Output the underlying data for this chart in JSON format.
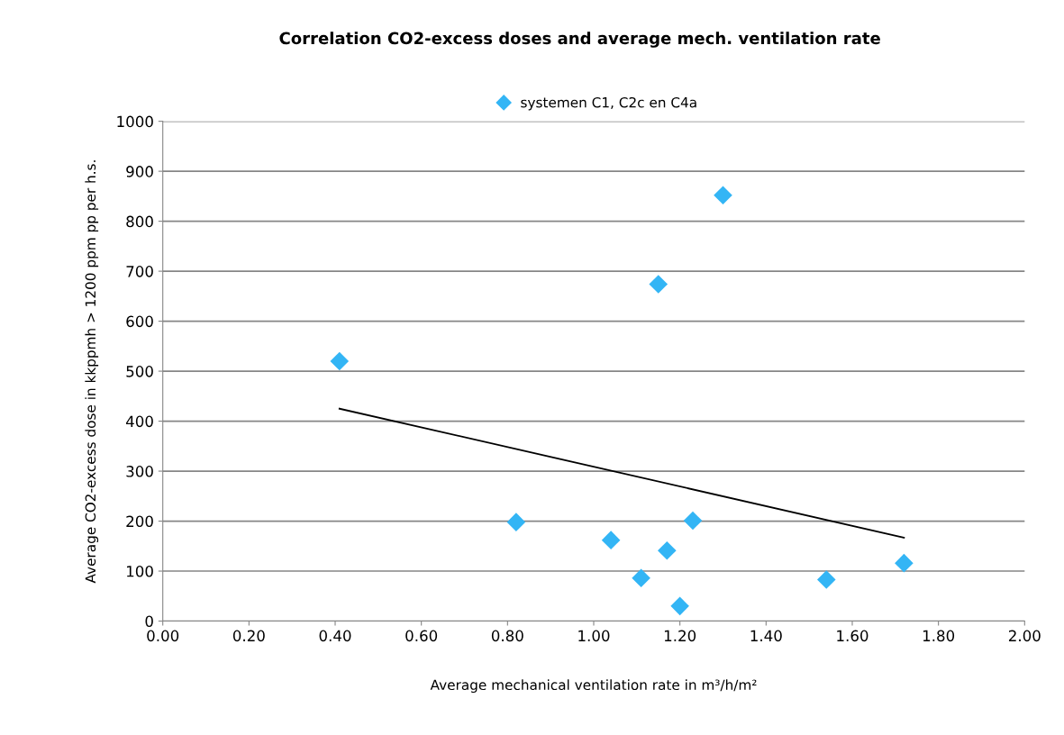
{
  "chart_data": {
    "type": "scatter",
    "title": "Correlation CO2-excess doses and average mech. ventilation rate",
    "xlabel": "Average mechanical ventilation rate in m³/h/m²",
    "ylabel": "Average CO2-excess dose in kkppmh > 1200 ppm pp per h.s.",
    "series": [
      {
        "name": "systemen C1, C2c en C4a",
        "color": "#33b5f5",
        "marker": "diamond",
        "x": [
          0.41,
          0.82,
          1.04,
          1.11,
          1.15,
          1.17,
          1.2,
          1.23,
          1.3,
          1.54,
          1.72
        ],
        "values": [
          520,
          198,
          162,
          86,
          674,
          141,
          30,
          201,
          852,
          83,
          116
        ]
      },
      {
        "type": "line",
        "color": "#000000",
        "marker": "none",
        "x": [
          0.41,
          1.72
        ],
        "values": [
          425,
          167
        ]
      }
    ],
    "xlim": [
      0,
      2
    ],
    "xticks": [
      {
        "value": 0,
        "label": "0.00"
      },
      {
        "value": 0.2,
        "label": "0.20"
      },
      {
        "value": 0.4,
        "label": "0.40"
      },
      {
        "value": 0.6,
        "label": "0.60"
      },
      {
        "value": 0.8,
        "label": "0.80"
      },
      {
        "value": 1,
        "label": "1.00"
      },
      {
        "value": 1.2,
        "label": "1.20"
      },
      {
        "value": 1.4,
        "label": "1.40"
      },
      {
        "value": 1.6,
        "label": "1.60"
      },
      {
        "value": 1.8,
        "label": "1.80"
      },
      {
        "value": 2,
        "label": "2.00"
      }
    ],
    "ylim": [
      0,
      1000
    ],
    "yticks": [
      0,
      100,
      200,
      300,
      400,
      500,
      600,
      700,
      800,
      900,
      1000
    ],
    "grid": "y",
    "legend": "top"
  }
}
